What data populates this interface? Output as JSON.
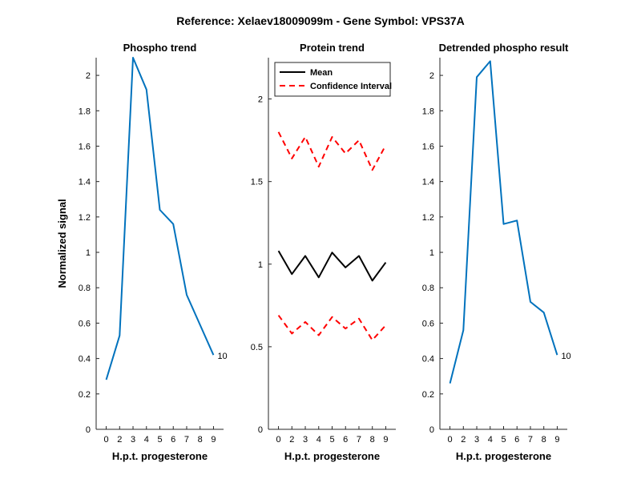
{
  "figure": {
    "suptitle": "Reference:  Xelaev18009099m - Gene Symbol:  VPS37A"
  },
  "colors": {
    "phospho_line": "#0072BD",
    "mean_line": "#000000",
    "ci_line": "#FF0000",
    "axis": "#262626"
  },
  "chart_data": [
    {
      "type": "line",
      "title": "Phospho trend",
      "xlabel": "H.p.t. progesterone",
      "ylabel": "Normalized signal",
      "x": [
        0,
        2,
        3,
        4,
        5,
        6,
        7,
        8,
        9
      ],
      "xticklabels": [
        "0",
        "2",
        "3",
        "4",
        "5",
        "6",
        "7",
        "8",
        "9"
      ],
      "ylim": [
        0,
        2.1
      ],
      "yticks": [
        0,
        0.2,
        0.4,
        0.6,
        0.8,
        1,
        1.2,
        1.4,
        1.6,
        1.8,
        2
      ],
      "yticklabels": [
        "0",
        "0.2",
        "0.4",
        "0.6",
        "0.8",
        "1",
        "1.2",
        "1.4",
        "1.6",
        "1.8",
        "2"
      ],
      "grid": false,
      "series": [
        {
          "values": [
            0.28,
            0.53,
            2.1,
            1.92,
            1.24,
            1.16,
            0.76,
            0.59,
            0.42
          ],
          "style": "solid"
        }
      ],
      "annotations": [
        {
          "text": "10"
        }
      ]
    },
    {
      "type": "line",
      "title": "Protein trend",
      "xlabel": "H.p.t. progesterone",
      "ylabel": "",
      "x": [
        0,
        2,
        3,
        4,
        5,
        6,
        7,
        8,
        9
      ],
      "xticklabels": [
        "0",
        "2",
        "3",
        "4",
        "5",
        "6",
        "7",
        "8",
        "9"
      ],
      "ylim": [
        0,
        2.25
      ],
      "yticks": [
        0,
        0.5,
        1,
        1.5,
        2
      ],
      "yticklabels": [
        "0",
        "0.5",
        "1",
        "1.5",
        "2"
      ],
      "grid": false,
      "legend_position": "top-left",
      "series": [
        {
          "name": "Mean",
          "values": [
            1.08,
            0.94,
            1.05,
            0.92,
            1.07,
            0.98,
            1.05,
            0.9,
            1.01
          ],
          "style": "solid"
        },
        {
          "name": "Confidence Interval",
          "values": [
            1.8,
            1.64,
            1.77,
            1.59,
            1.77,
            1.67,
            1.75,
            1.57,
            1.72
          ],
          "style": "dashed"
        },
        {
          "values": [
            0.69,
            0.58,
            0.65,
            0.57,
            0.68,
            0.61,
            0.67,
            0.54,
            0.63
          ],
          "style": "dashed"
        }
      ]
    },
    {
      "type": "line",
      "title": "Detrended phospho result",
      "xlabel": "H.p.t. progesterone",
      "ylabel": "",
      "x": [
        0,
        2,
        3,
        4,
        5,
        6,
        7,
        8,
        9
      ],
      "xticklabels": [
        "0",
        "2",
        "3",
        "4",
        "5",
        "6",
        "7",
        "8",
        "9"
      ],
      "ylim": [
        0,
        2.1
      ],
      "yticks": [
        0,
        0.2,
        0.4,
        0.6,
        0.8,
        1,
        1.2,
        1.4,
        1.6,
        1.8,
        2
      ],
      "yticklabels": [
        "0",
        "0.2",
        "0.4",
        "0.6",
        "0.8",
        "1",
        "1.2",
        "1.4",
        "1.6",
        "1.8",
        "2"
      ],
      "grid": false,
      "series": [
        {
          "values": [
            0.26,
            0.56,
            1.99,
            2.08,
            1.16,
            1.18,
            0.72,
            0.66,
            0.42
          ],
          "style": "solid"
        }
      ],
      "annotations": [
        {
          "text": "10"
        }
      ]
    }
  ]
}
